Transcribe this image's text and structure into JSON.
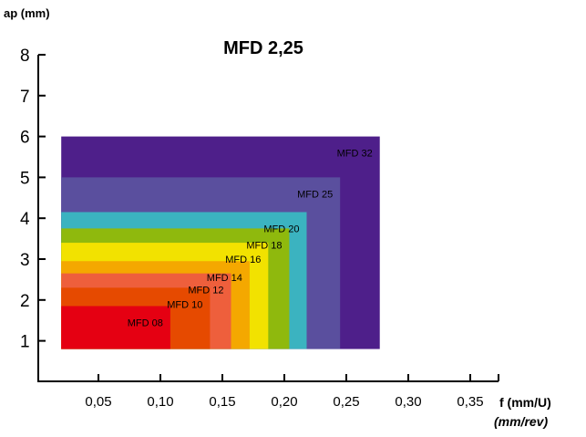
{
  "chart_data": {
    "type": "area",
    "title": "MFD 2,25",
    "ylabel": "ap (mm)",
    "xlabel": "f (mm/U)",
    "xlabel2": "(mm/rev)",
    "xlim": [
      0.0,
      0.4
    ],
    "ylim": [
      0,
      8
    ],
    "x_ticks": [
      "0,05",
      "0,10",
      "0,15",
      "0,20",
      "0,25",
      "0,30",
      "0,35"
    ],
    "x_tick_values": [
      0.05,
      0.1,
      0.15,
      0.2,
      0.25,
      0.3,
      0.35
    ],
    "y_ticks": [
      "1",
      "2",
      "3",
      "4",
      "5",
      "6",
      "7",
      "8"
    ],
    "y_tick_values": [
      1,
      2,
      3,
      4,
      5,
      6,
      7,
      8
    ],
    "grid": false,
    "series": [
      {
        "name": "MFD 32",
        "f_min": 0.02,
        "f_max": 0.277,
        "ap_min": 0.8,
        "ap_max": 6.0,
        "color": "#4e1f8a"
      },
      {
        "name": "MFD 25",
        "f_min": 0.02,
        "f_max": 0.245,
        "ap_min": 0.8,
        "ap_max": 5.0,
        "color": "#5a4f9e"
      },
      {
        "name": "MFD 20",
        "f_min": 0.02,
        "f_max": 0.218,
        "ap_min": 0.8,
        "ap_max": 4.15,
        "color": "#3bb3c0"
      },
      {
        "name": "MFD 18",
        "f_min": 0.02,
        "f_max": 0.204,
        "ap_min": 0.8,
        "ap_max": 3.75,
        "color": "#8fb90d"
      },
      {
        "name": "MFD 16",
        "f_min": 0.02,
        "f_max": 0.187,
        "ap_min": 0.8,
        "ap_max": 3.4,
        "color": "#f2e200"
      },
      {
        "name": "MFD 14",
        "f_min": 0.02,
        "f_max": 0.172,
        "ap_min": 0.8,
        "ap_max": 2.95,
        "color": "#f4a800"
      },
      {
        "name": "MFD 12",
        "f_min": 0.02,
        "f_max": 0.157,
        "ap_min": 0.8,
        "ap_max": 2.65,
        "color": "#ee5f3c"
      },
      {
        "name": "MFD 10",
        "f_min": 0.02,
        "f_max": 0.14,
        "ap_min": 0.8,
        "ap_max": 2.3,
        "color": "#e64a00"
      },
      {
        "name": "MFD 08",
        "f_min": 0.02,
        "f_max": 0.108,
        "ap_min": 0.8,
        "ap_max": 1.85,
        "color": "#e50012"
      }
    ]
  }
}
